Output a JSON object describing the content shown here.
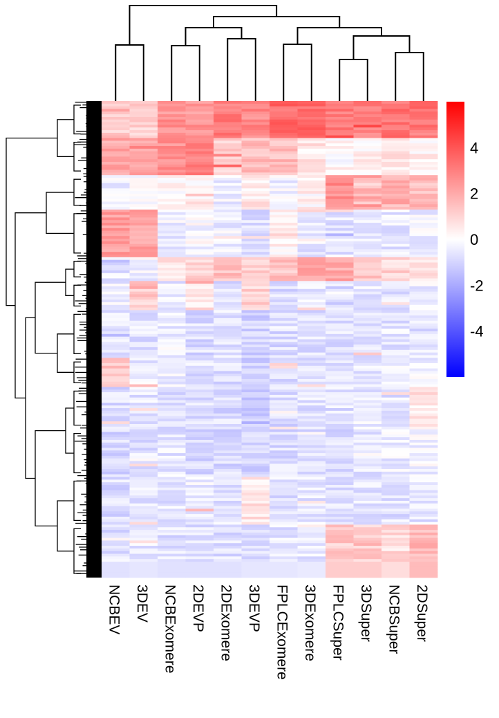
{
  "chart_data": {
    "type": "heatmap",
    "columns": [
      "NCBEV",
      "3DEV",
      "NCBExomere",
      "2DEVP",
      "2DExomere",
      "3DEVP",
      "FPLCExomere",
      "3DExomere",
      "FPLCSuper",
      "3DSuper",
      "NCBSuper",
      "2DSuper"
    ],
    "colorbar": {
      "min": -6,
      "max": 6,
      "ticks": [
        {
          "value": 4,
          "label": "4"
        },
        {
          "value": 2,
          "label": "2"
        },
        {
          "value": 0,
          "label": "0"
        },
        {
          "value": -2,
          "label": "-2"
        },
        {
          "value": -4,
          "label": "-4"
        }
      ],
      "colors": {
        "low": "#0000ff",
        "mid": "#ffffff",
        "high": "#ff0000"
      }
    },
    "column_dendrogram": true,
    "row_dendrogram": true,
    "row_blocks": [
      {
        "fraction": 0.08,
        "values": [
          1.2,
          1.0,
          2.5,
          2.4,
          3.0,
          2.8,
          3.5,
          3.6,
          3.2,
          3.0,
          3.2,
          3.4
        ]
      },
      {
        "fraction": 0.08,
        "values": [
          2.0,
          2.2,
          2.6,
          2.8,
          1.2,
          1.6,
          1.6,
          0.6,
          0.2,
          0.2,
          0.6,
          0.4
        ]
      },
      {
        "fraction": 0.07,
        "values": [
          -0.3,
          0.2,
          0.3,
          0.4,
          -0.4,
          0.5,
          -0.3,
          0.3,
          2.5,
          1.8,
          1.8,
          1.6
        ]
      },
      {
        "fraction": 0.1,
        "values": [
          2.3,
          2.2,
          -0.4,
          -0.2,
          -0.4,
          -0.8,
          0.2,
          -0.5,
          -0.6,
          -0.6,
          -0.5,
          -0.4
        ]
      },
      {
        "fraction": 0.05,
        "values": [
          -0.6,
          -0.3,
          0.8,
          1.0,
          1.4,
          1.0,
          1.4,
          2.2,
          2.0,
          1.5,
          1.0,
          0.5
        ]
      },
      {
        "fraction": 0.06,
        "values": [
          -0.4,
          1.2,
          -0.5,
          0.6,
          -0.7,
          1.0,
          -0.8,
          -0.5,
          -0.8,
          -0.5,
          -0.6,
          -0.4
        ]
      },
      {
        "fraction": 0.1,
        "values": [
          -0.6,
          -0.7,
          -0.4,
          -0.8,
          -0.7,
          -1.0,
          -0.8,
          -0.7,
          -0.7,
          -0.6,
          -0.6,
          -0.5
        ]
      },
      {
        "fraction": 0.06,
        "values": [
          1.4,
          -0.5,
          -0.4,
          -0.7,
          -0.8,
          -1.2,
          -0.8,
          -0.8,
          -0.8,
          -0.6,
          -0.5,
          -0.4
        ]
      },
      {
        "fraction": 0.09,
        "values": [
          -0.8,
          -0.6,
          -0.7,
          -0.8,
          -0.8,
          -1.3,
          -0.8,
          -0.7,
          -0.7,
          -0.5,
          -0.6,
          0.6
        ]
      },
      {
        "fraction": 0.1,
        "values": [
          -0.9,
          -0.7,
          -0.6,
          -0.9,
          -0.9,
          -1.1,
          -0.8,
          -0.7,
          -0.8,
          -0.7,
          -0.5,
          -0.3
        ]
      },
      {
        "fraction": 0.1,
        "values": [
          -0.8,
          -0.7,
          -0.6,
          -0.4,
          -0.6,
          0.6,
          -0.7,
          -0.6,
          -0.7,
          -0.6,
          -0.7,
          -0.6
        ]
      },
      {
        "fraction": 0.08,
        "values": [
          -0.7,
          -0.6,
          -0.7,
          -0.7,
          -0.7,
          -0.6,
          -0.6,
          -0.5,
          1.2,
          1.2,
          0.8,
          1.6
        ]
      }
    ]
  }
}
